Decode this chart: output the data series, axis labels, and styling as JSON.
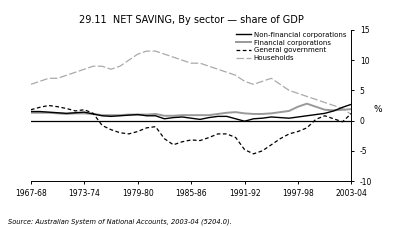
{
  "title": "29.11  NET SAVING, By sector — share of GDP",
  "ylabel": "%",
  "source": "Source: Australian System of National Accounts, 2003-04 (5204.0).",
  "xtick_labels": [
    "1967-68",
    "1973-74",
    "1979-80",
    "1985-86",
    "1991-92",
    "1997-98",
    "2003-04"
  ],
  "ylim": [
    -10,
    15
  ],
  "yticks": [
    -10,
    -5,
    0,
    5,
    10,
    15
  ],
  "years": [
    1967,
    1968,
    1969,
    1970,
    1971,
    1972,
    1973,
    1974,
    1975,
    1976,
    1977,
    1978,
    1979,
    1980,
    1981,
    1982,
    1983,
    1984,
    1985,
    1986,
    1987,
    1988,
    1989,
    1990,
    1991,
    1992,
    1993,
    1994,
    1995,
    1996,
    1997,
    1998,
    1999,
    2000,
    2001,
    2002,
    2003
  ],
  "non_financial": [
    1.5,
    1.5,
    1.4,
    1.3,
    1.2,
    1.3,
    1.4,
    1.1,
    0.8,
    0.7,
    0.8,
    0.9,
    1.0,
    0.8,
    0.8,
    0.3,
    0.5,
    0.6,
    0.4,
    0.2,
    0.5,
    0.7,
    0.7,
    0.3,
    -0.1,
    0.3,
    0.4,
    0.6,
    0.5,
    0.4,
    0.6,
    0.8,
    1.0,
    1.2,
    1.6,
    2.2,
    2.7
  ],
  "financial": [
    1.3,
    1.3,
    1.3,
    1.2,
    1.1,
    1.2,
    1.2,
    1.1,
    0.9,
    0.9,
    0.9,
    1.0,
    1.0,
    1.0,
    1.1,
    0.8,
    0.8,
    0.9,
    0.9,
    0.9,
    0.9,
    1.1,
    1.3,
    1.4,
    1.2,
    1.1,
    1.1,
    1.2,
    1.4,
    1.6,
    2.3,
    2.8,
    2.3,
    1.8,
    1.7,
    1.8,
    1.9
  ],
  "general_govt": [
    1.8,
    2.2,
    2.5,
    2.3,
    2.0,
    1.6,
    1.8,
    1.2,
    -0.8,
    -1.5,
    -2.0,
    -2.2,
    -1.8,
    -1.2,
    -1.0,
    -3.0,
    -4.0,
    -3.5,
    -3.2,
    -3.3,
    -2.8,
    -2.2,
    -2.2,
    -2.8,
    -4.8,
    -5.5,
    -5.0,
    -4.0,
    -3.0,
    -2.2,
    -1.8,
    -1.2,
    0.2,
    0.8,
    0.3,
    -0.2,
    1.2
  ],
  "households": [
    6.0,
    6.5,
    7.0,
    7.0,
    7.5,
    8.0,
    8.5,
    9.0,
    9.0,
    8.5,
    9.0,
    10.0,
    11.0,
    11.5,
    11.5,
    11.0,
    10.5,
    10.0,
    9.5,
    9.5,
    9.0,
    8.5,
    8.0,
    7.5,
    6.5,
    6.0,
    6.5,
    7.0,
    6.0,
    5.0,
    4.5,
    4.0,
    3.5,
    3.0,
    2.5,
    2.0,
    1.0
  ],
  "non_financial_color": "#000000",
  "financial_color": "#999999",
  "general_govt_color": "#000000",
  "households_color": "#aaaaaa",
  "bg_color": "#ffffff"
}
